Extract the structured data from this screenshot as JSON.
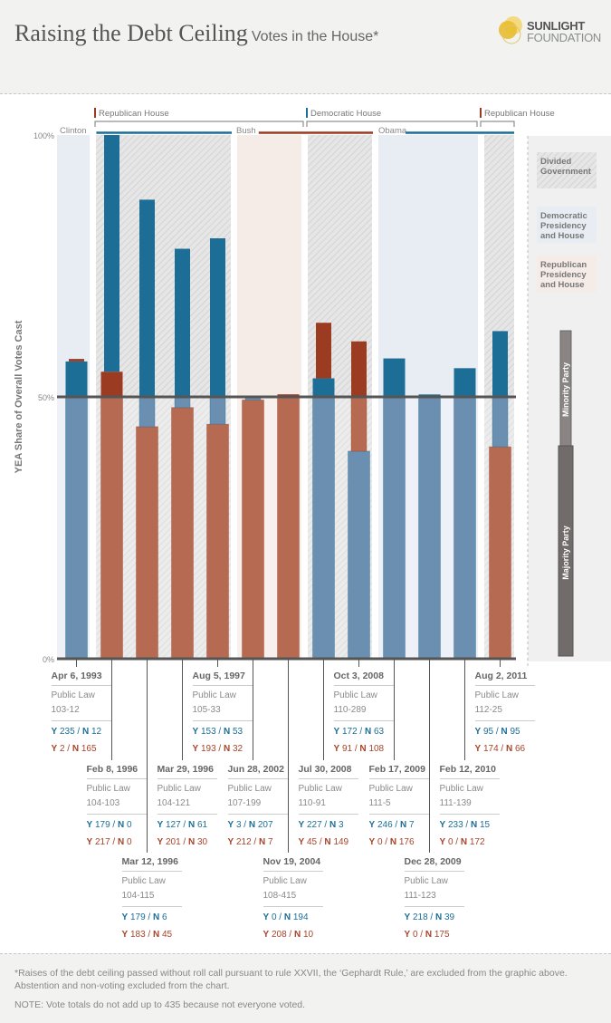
{
  "header": {
    "title": "Raising the Debt Ceiling",
    "subtitle": "Votes in the House*",
    "logo_line1": "SUNLIGHT",
    "logo_line2": "FOUNDATION"
  },
  "colors": {
    "democrat": "#1c6e96",
    "democrat_light": "#6a8fb0",
    "republican": "#9b3b22",
    "republican_light": "#b56a51",
    "divided_band": "#e3e3e3",
    "dem_band": "#e8edf4",
    "rep_band": "#f5ebe7"
  },
  "chart_data": {
    "type": "bar",
    "title": "Raising the Debt Ceiling",
    "subtitle": "Votes in the House*",
    "ylabel": "YEA Share of Overall Votes Cast",
    "ylim": [
      0,
      100
    ],
    "yticks": [
      "0%",
      "50%",
      "100%"
    ],
    "reference_line": 50,
    "house_control": [
      {
        "label": "Republican House",
        "party": "R",
        "from": 1,
        "to": 7
      },
      {
        "label": "Democratic House",
        "party": "D",
        "from": 7,
        "to": 12
      },
      {
        "label": "Republican House",
        "party": "R",
        "from": 12,
        "to": 13
      }
    ],
    "presidents": [
      {
        "label": "Clinton",
        "party": "D"
      },
      {
        "label": "Bush",
        "party": "R"
      },
      {
        "label": "Obama",
        "party": "D"
      }
    ],
    "bands": [
      {
        "type": "dem",
        "from": 0,
        "to": 1
      },
      {
        "type": "divided",
        "from": 1,
        "to": 5
      },
      {
        "type": "rep",
        "from": 5,
        "to": 7
      },
      {
        "type": "divided",
        "from": 7,
        "to": 9
      },
      {
        "type": "dem",
        "from": 9,
        "to": 12
      },
      {
        "type": "divided",
        "from": 12,
        "to": 13
      }
    ],
    "votes": [
      {
        "date": "Apr 6, 1993",
        "law": "Public Law 103-12",
        "law1": "Public Law",
        "law2": "103-12",
        "majority": "D",
        "dem_y": 235,
        "dem_n": 12,
        "rep_y": 2,
        "rep_n": 165,
        "row": 0
      },
      {
        "date": "Feb 8, 1996",
        "law": "Public Law 104-103",
        "law1": "Public Law",
        "law2": "104-103",
        "majority": "R",
        "dem_y": 179,
        "dem_n": 0,
        "rep_y": 217,
        "rep_n": 0,
        "row": 1
      },
      {
        "date": "Mar 12, 1996",
        "law": "Public Law 104-115",
        "law1": "Public Law",
        "law2": "104-115",
        "majority": "R",
        "dem_y": 179,
        "dem_n": 6,
        "rep_y": 183,
        "rep_n": 45,
        "row": 2
      },
      {
        "date": "Mar 29, 1996",
        "law": "Public Law 104-121",
        "law1": "Public Law",
        "law2": "104-121",
        "majority": "R",
        "dem_y": 127,
        "dem_n": 61,
        "rep_y": 201,
        "rep_n": 30,
        "row": 1
      },
      {
        "date": "Aug 5, 1997",
        "law": "Public Law 105-33",
        "law1": "Public Law",
        "law2": "105-33",
        "majority": "R",
        "dem_y": 153,
        "dem_n": 53,
        "rep_y": 193,
        "rep_n": 32,
        "row": 0
      },
      {
        "date": "Jun 28, 2002",
        "law": "Public Law 107-199",
        "law1": "Public Law",
        "law2": "107-199",
        "majority": "R",
        "dem_y": 3,
        "dem_n": 207,
        "rep_y": 212,
        "rep_n": 7,
        "row": 1
      },
      {
        "date": "Nov 19, 2004",
        "law": "Public Law 108-415",
        "law1": "Public Law",
        "law2": "108-415",
        "majority": "R",
        "dem_y": 0,
        "dem_n": 194,
        "rep_y": 208,
        "rep_n": 10,
        "row": 2
      },
      {
        "date": "Jul 30, 2008",
        "law": "Public Law 110-91",
        "law1": "Public Law",
        "law2": "110-91",
        "majority": "D",
        "dem_y": 227,
        "dem_n": 3,
        "rep_y": 45,
        "rep_n": 149,
        "row": 1
      },
      {
        "date": "Oct 3, 2008",
        "law": "Public Law 110-289",
        "law1": "Public Law",
        "law2": "110-289",
        "majority": "D",
        "dem_y": 172,
        "dem_n": 63,
        "rep_y": 91,
        "rep_n": 108,
        "row": 0
      },
      {
        "date": "Feb 17, 2009",
        "law": "Public Law 111-5",
        "law1": "Public Law",
        "law2": "111-5",
        "majority": "D",
        "dem_y": 246,
        "dem_n": 7,
        "rep_y": 0,
        "rep_n": 176,
        "row": 1
      },
      {
        "date": "Dec 28, 2009",
        "law": "Public Law 111-123",
        "law1": "Public Law",
        "law2": "111-123",
        "majority": "D",
        "dem_y": 218,
        "dem_n": 39,
        "rep_y": 0,
        "rep_n": 175,
        "row": 2
      },
      {
        "date": "Feb 12, 2010",
        "law": "Public Law 111-139",
        "law1": "Public Law",
        "law2": "111-139",
        "majority": "D",
        "dem_y": 233,
        "dem_n": 15,
        "rep_y": 0,
        "rep_n": 172,
        "row": 1
      },
      {
        "date": "Aug 2, 2011",
        "law": "Public Law 112-25",
        "law1": "Public Law",
        "law2": "112-25",
        "majority": "R",
        "dem_y": 95,
        "dem_n": 95,
        "rep_y": 174,
        "rep_n": 66,
        "row": 0
      }
    ],
    "legend": {
      "divided": "Divided Government",
      "dem": "Democratic Presidency and House",
      "rep": "Republican Presidency and House",
      "minority": "Minority Party",
      "majority": "Majority Party"
    }
  },
  "footer": {
    "footnote": "*Raises of the debt ceiling passed without roll call pursuant to rule XXVII, the ‘Gephardt Rule,’ are excluded from the graphic above. Abstention and non-voting excluded from the chart.",
    "note": "NOTE: Vote totals do not add up to 435 because not everyone voted."
  }
}
